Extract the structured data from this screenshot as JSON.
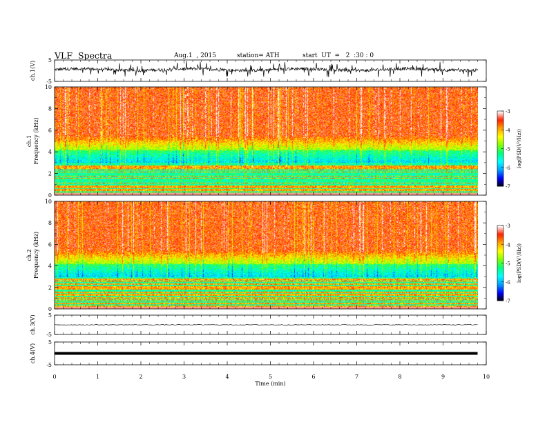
{
  "header": {
    "title": "VLF  Spectra",
    "date": "Aug.1  , 2015",
    "station": "station= ATH",
    "start": "start  UT  =   2  :30 : 0"
  },
  "chart_data": [
    {
      "type": "line",
      "name": "ch1-waveform",
      "ylabel": "ch.1(V)",
      "ylim": [
        -5,
        5
      ],
      "yticks": [
        "5",
        "-5"
      ],
      "xlim": [
        0,
        10
      ],
      "data_end_min": 9.8,
      "approx_level_v": 0.5,
      "approx_peak_to_peak_v": 3
    },
    {
      "type": "heatmap",
      "name": "ch1-spectrogram",
      "ylabel": "ch.1\nFrequency  (kHz)",
      "ylim": [
        0,
        10
      ],
      "yticks": [
        "0",
        "2",
        "4",
        "6",
        "8",
        "10"
      ],
      "xlim": [
        0,
        10
      ],
      "data_end_min": 9.8,
      "colorbar": {
        "label": "log(PSD(V²/Hz))",
        "range": [
          -7,
          -3
        ],
        "ticks": [
          "-3",
          "-4",
          "-5",
          "-6",
          "-7"
        ]
      }
    },
    {
      "type": "heatmap",
      "name": "ch2-spectrogram",
      "ylabel": "ch.2\nFrequency  (kHz)",
      "ylim": [
        0,
        10
      ],
      "yticks": [
        "0",
        "2",
        "4",
        "6",
        "8",
        "10"
      ],
      "xlim": [
        0,
        10
      ],
      "data_end_min": 9.8,
      "colorbar": {
        "label": "log(PSD(V²/Hz))",
        "range": [
          -7,
          -3
        ],
        "ticks": [
          "-3",
          "-4",
          "-5",
          "-6",
          "-7"
        ]
      }
    },
    {
      "type": "line",
      "name": "ch3-waveform",
      "ylabel": "ch.3(V)",
      "ylim": [
        -5,
        5
      ],
      "yticks": [
        "5",
        "-5"
      ],
      "xlim": [
        0,
        10
      ],
      "data_end_min": 9.8,
      "approx_level_v": 0
    },
    {
      "type": "line",
      "name": "ch4-waveform",
      "ylabel": "ch.4(V)",
      "ylim": [
        -5,
        5
      ],
      "yticks": [
        "5",
        "-5"
      ],
      "xlim": [
        0,
        10
      ],
      "data_end_min": 9.8,
      "approx_level_v": 0
    }
  ],
  "xaxis": {
    "label": "Time  (min)",
    "ticks": [
      "0",
      "1",
      "2",
      "3",
      "4",
      "5",
      "6",
      "7",
      "8",
      "9",
      "10"
    ]
  },
  "colors": {
    "colormap": [
      "#000000",
      "#0000ff",
      "#00a0ff",
      "#00ffff",
      "#00ff80",
      "#80ff00",
      "#ffff00",
      "#ffa000",
      "#ff2000",
      "#ffffff"
    ]
  }
}
